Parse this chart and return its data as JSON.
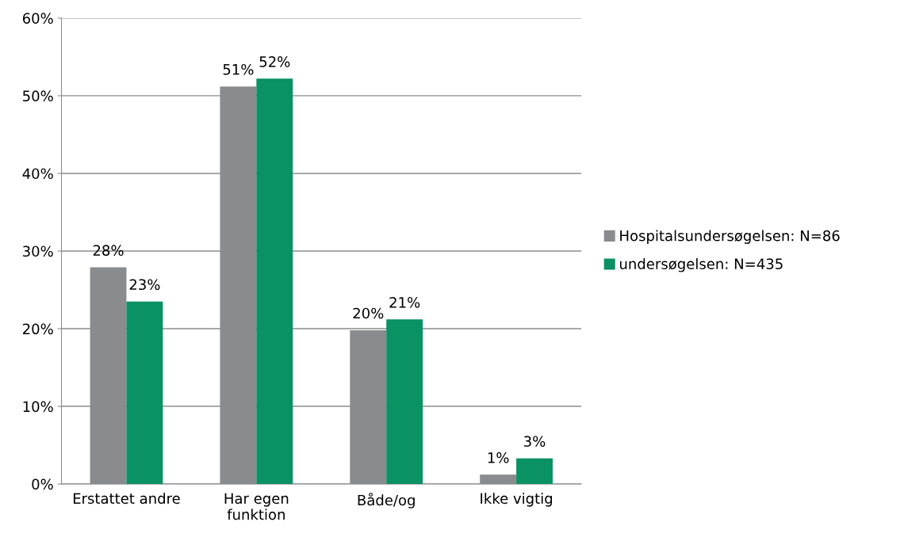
{
  "chart_data": {
    "type": "bar",
    "categories": [
      "Erstattet andre",
      "Har egen\nfunktion",
      "Både/og",
      "Ikke vigtig"
    ],
    "series": [
      {
        "name": "Hospitalsundersøgelsen: N=86",
        "color": "#898b8e",
        "values": [
          27.9,
          51.2,
          19.8,
          1.2
        ],
        "value_labels": [
          "28%",
          "51%",
          "20%",
          "1%"
        ]
      },
      {
        "name": "undersøgelsen: N=435",
        "color": "#0a9164",
        "values": [
          23.5,
          52.2,
          21.2,
          3.3
        ],
        "value_labels": [
          "23%",
          "52%",
          "21%",
          "3%"
        ]
      }
    ],
    "ylim": [
      0,
      60
    ],
    "yticks": [
      {
        "value": 0,
        "label": "0%"
      },
      {
        "value": 10,
        "label": "10%"
      },
      {
        "value": 20,
        "label": "20%"
      },
      {
        "value": 30,
        "label": "30%"
      },
      {
        "value": 40,
        "label": "40%"
      },
      {
        "value": 50,
        "label": "50%"
      },
      {
        "value": 60,
        "label": "60%"
      }
    ],
    "grid": "y",
    "legend": "right"
  }
}
